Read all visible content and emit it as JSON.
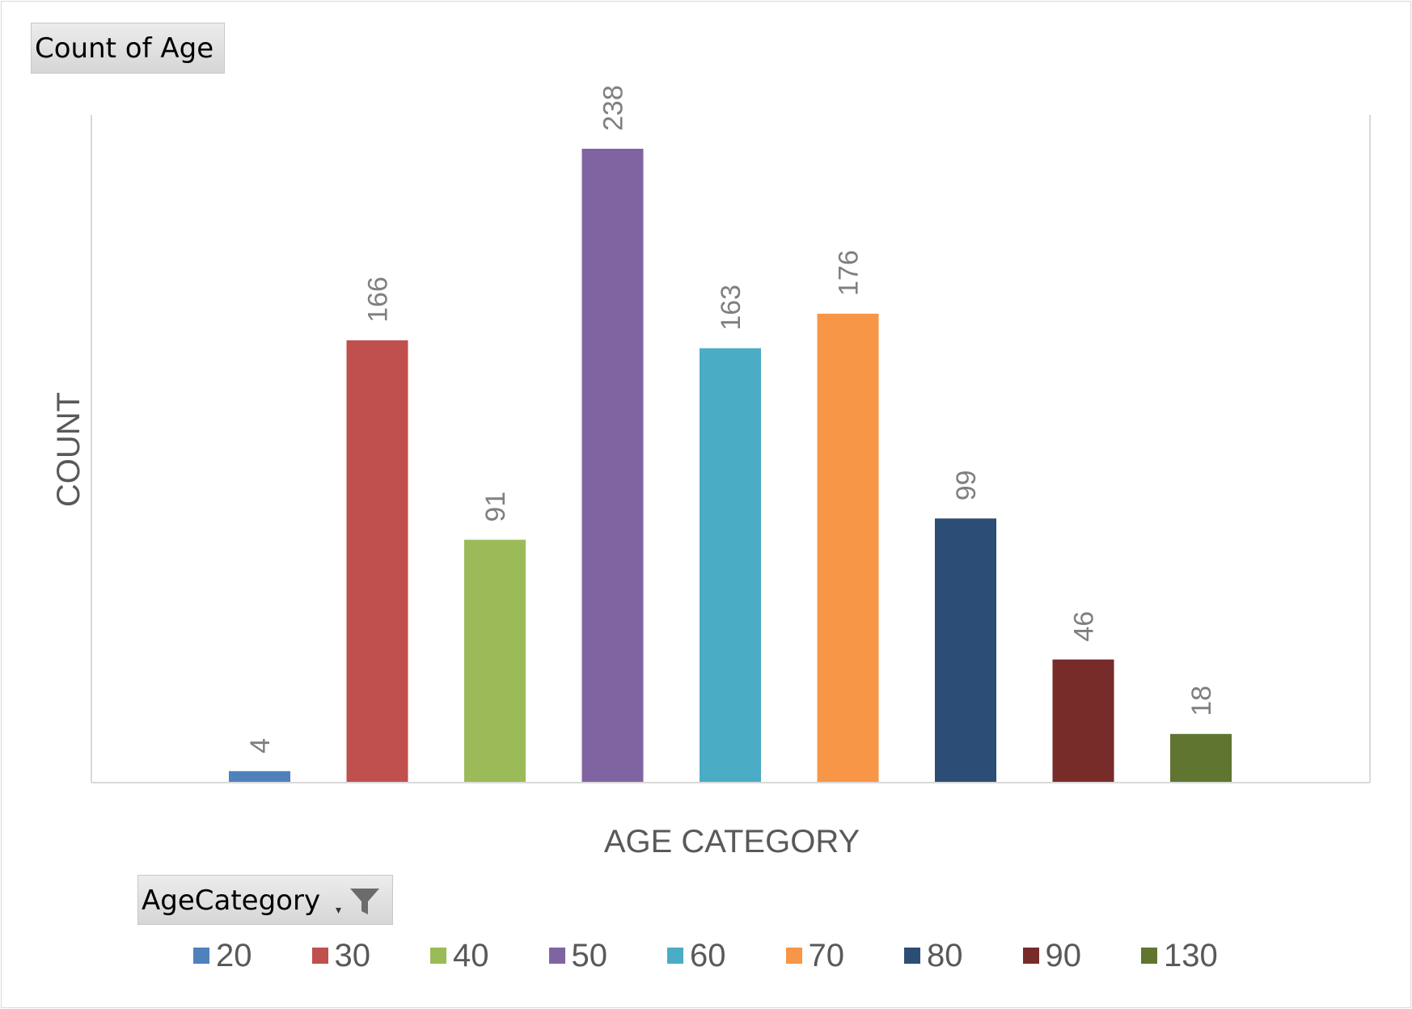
{
  "pivot": {
    "value_field_button": "Count of Age",
    "axis_field_button": "AgeCategory"
  },
  "chart_data": {
    "type": "bar",
    "categories": [
      "20",
      "30",
      "40",
      "50",
      "60",
      "70",
      "80",
      "90",
      "130"
    ],
    "values": [
      4,
      166,
      91,
      238,
      163,
      176,
      99,
      46,
      18
    ],
    "colors": [
      "#4f81bd",
      "#c0504d",
      "#9bbb59",
      "#8064a2",
      "#4bacc6",
      "#f79646",
      "#2c4d75",
      "#772c2a",
      "#5f7530"
    ],
    "title": "",
    "xlabel": "AGE CATEGORY",
    "ylabel": "COUNT",
    "ylim": [
      0,
      250
    ],
    "grid": false,
    "data_labels": true,
    "legend_position": "bottom"
  }
}
